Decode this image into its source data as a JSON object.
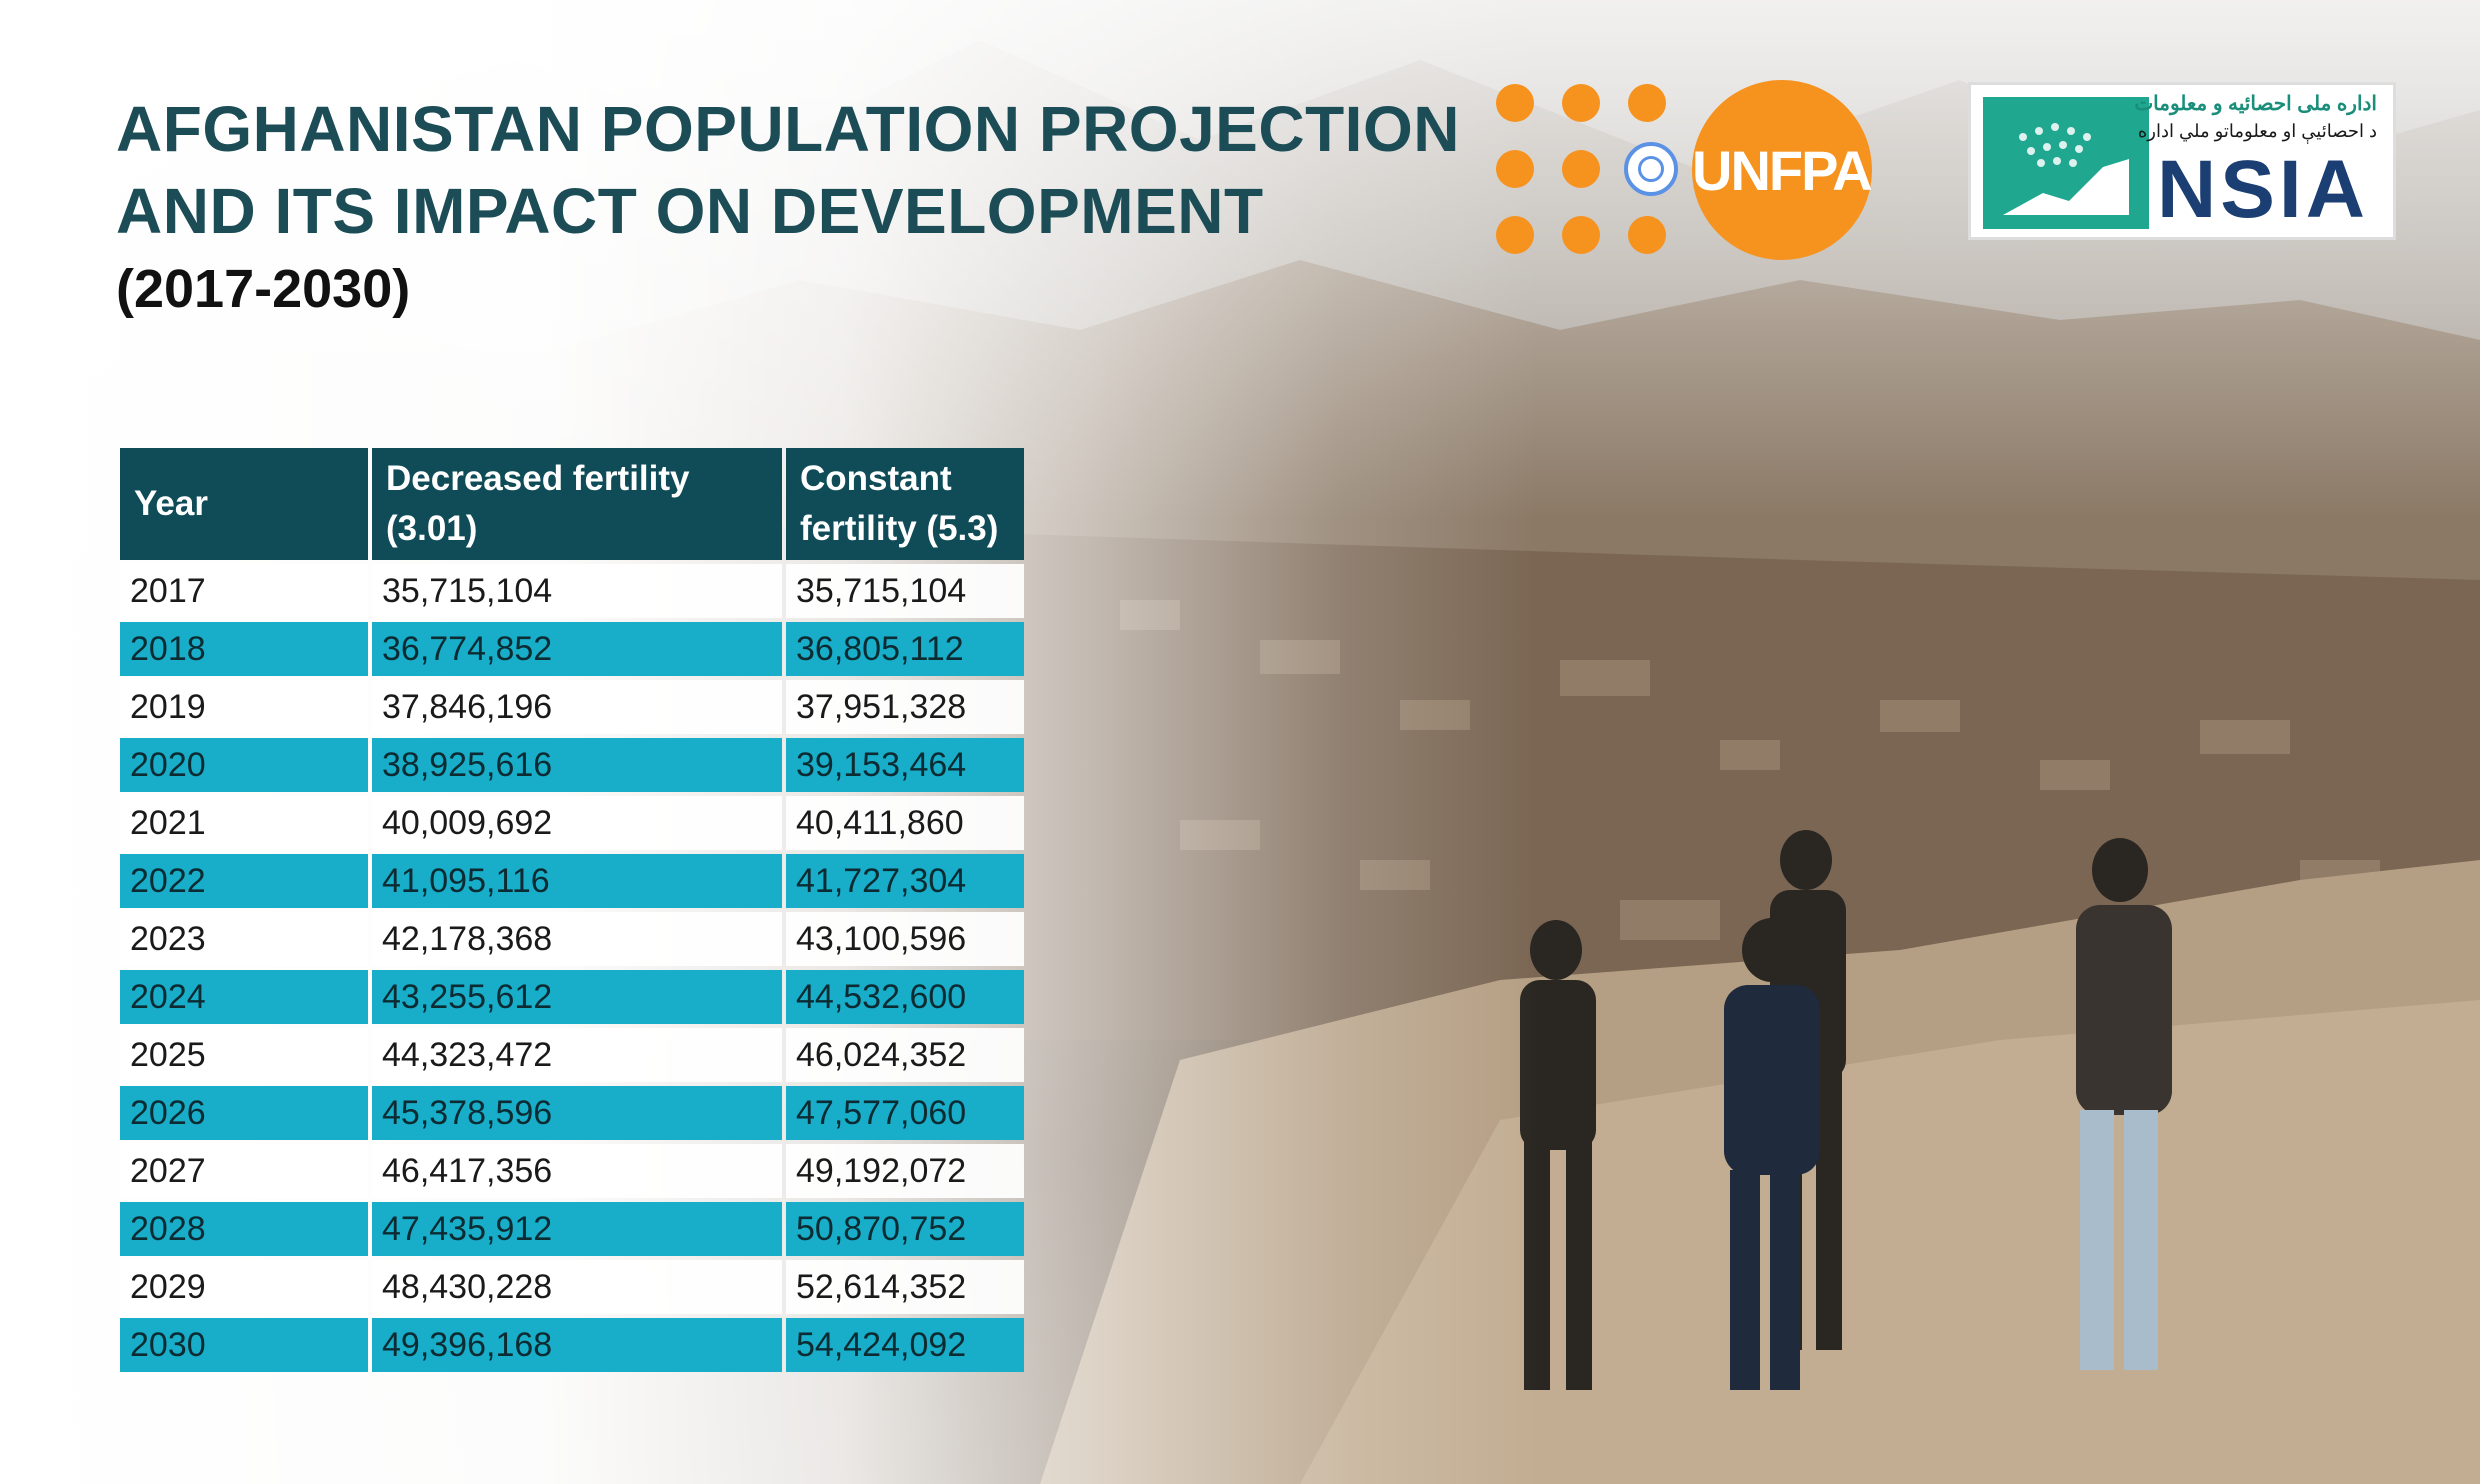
{
  "header": {
    "title_line1": "AFGHANISTAN POPULATION PROJECTION",
    "title_line2": "AND ITS IMPACT ON DEVELOPMENT",
    "subtitle": "(2017-2030)"
  },
  "logos": {
    "unfpa": {
      "word": "UNFPA",
      "color": "#f6921e"
    },
    "nsia": {
      "arabic_line1": "اداره ملی احصائیه و معلومات",
      "arabic_line2": "د احصائيې او معلوماتو ملي اداره",
      "name": "NSIA",
      "color": "#1b3f73"
    }
  },
  "table": {
    "headers": {
      "year": "Year",
      "decreased": "Decreased fertility (3.01)",
      "constant": "Constant fertility (5.3)"
    },
    "rows": [
      {
        "year": "2017",
        "decreased": "35,715,104",
        "constant": "35,715,104"
      },
      {
        "year": "2018",
        "decreased": "36,774,852",
        "constant": "36,805,112"
      },
      {
        "year": "2019",
        "decreased": "37,846,196",
        "constant": "37,951,328"
      },
      {
        "year": "2020",
        "decreased": "38,925,616",
        "constant": "39,153,464"
      },
      {
        "year": "2021",
        "decreased": "40,009,692",
        "constant": "40,411,860"
      },
      {
        "year": "2022",
        "decreased": "41,095,116",
        "constant": "41,727,304"
      },
      {
        "year": "2023",
        "decreased": "42,178,368",
        "constant": "43,100,596"
      },
      {
        "year": "2024",
        "decreased": "43,255,612",
        "constant": "44,532,600"
      },
      {
        "year": "2025",
        "decreased": "44,323,472",
        "constant": "46,024,352"
      },
      {
        "year": "2026",
        "decreased": "45,378,596",
        "constant": "47,577,060"
      },
      {
        "year": "2027",
        "decreased": "46,417,356",
        "constant": "49,192,072"
      },
      {
        "year": "2028",
        "decreased": "47,435,912",
        "constant": "50,870,752"
      },
      {
        "year": "2029",
        "decreased": "48,430,228",
        "constant": "52,614,352"
      },
      {
        "year": "2030",
        "decreased": "49,396,168",
        "constant": "54,424,092"
      }
    ],
    "header_color": "#0f4c57",
    "stripe_color": "#18adc8"
  }
}
